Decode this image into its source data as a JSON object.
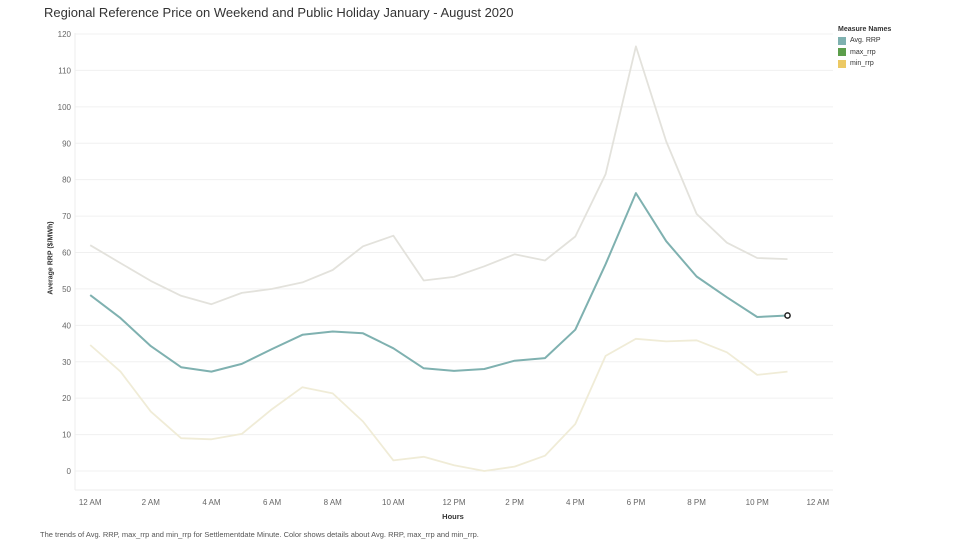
{
  "chart_data": {
    "type": "line",
    "title": "Regional Reference Price on Weekend and Public Holiday January - August 2020",
    "xlabel": "Hours",
    "ylabel": "Average RRP ($/MWh)",
    "caption": "The trends of Avg. RRP, max_rrp and min_rrp for Settlementdate Minute.  Color shows details about Avg. RRP, max_rrp and min_rrp.",
    "ylim": [
      0,
      120
    ],
    "yticks": [
      0,
      10,
      20,
      30,
      40,
      50,
      60,
      70,
      80,
      90,
      100,
      110,
      120
    ],
    "xlim": [
      -0.5,
      24.5
    ],
    "xticks": [
      {
        "value": 0,
        "label": "12 AM"
      },
      {
        "value": 2,
        "label": "2 AM"
      },
      {
        "value": 4,
        "label": "4 AM"
      },
      {
        "value": 6,
        "label": "6 AM"
      },
      {
        "value": 8,
        "label": "8 AM"
      },
      {
        "value": 10,
        "label": "10 AM"
      },
      {
        "value": 12,
        "label": "12 PM"
      },
      {
        "value": 14,
        "label": "2 PM"
      },
      {
        "value": 16,
        "label": "4 PM"
      },
      {
        "value": 18,
        "label": "6 PM"
      },
      {
        "value": 20,
        "label": "8 PM"
      },
      {
        "value": 22,
        "label": "10 PM"
      },
      {
        "value": 24,
        "label": "12 AM"
      }
    ],
    "x": [
      0,
      1,
      2,
      3,
      4,
      5,
      6,
      7,
      8,
      9,
      10,
      11,
      12,
      13,
      14,
      15,
      16,
      17,
      18,
      19,
      20,
      21,
      22,
      23
    ],
    "grid": "horizontal",
    "legend_title": "Measure Names",
    "legend_position": "top-right",
    "series": [
      {
        "name": "Avg. RRP",
        "legend_color": "#7fb1b0",
        "line_color": "#7fb1b0",
        "values": [
          48.3,
          42.0,
          34.3,
          28.5,
          27.3,
          29.4,
          33.5,
          37.4,
          38.3,
          37.8,
          33.7,
          28.2,
          27.5,
          28.0,
          30.3,
          31.0,
          38.8,
          56.8,
          76.3,
          63.1,
          53.4,
          47.7,
          42.3,
          42.7
        ]
      },
      {
        "name": "max_rrp",
        "legend_color": "#5c9e4b",
        "line_color": "#e3e2dc",
        "values": [
          62.0,
          57.1,
          52.2,
          48.1,
          45.8,
          48.9,
          50.0,
          51.8,
          55.2,
          61.7,
          64.6,
          52.3,
          53.3,
          56.2,
          59.5,
          57.8,
          64.4,
          81.5,
          116.6,
          90.5,
          70.6,
          62.7,
          58.5,
          58.2
        ]
      },
      {
        "name": "min_rrp",
        "legend_color": "#ecc964",
        "line_color": "#f0ecd7",
        "values": [
          34.6,
          27.3,
          16.3,
          9.0,
          8.7,
          10.2,
          17.0,
          23.0,
          21.3,
          13.6,
          2.9,
          3.9,
          1.6,
          0.0,
          1.2,
          4.2,
          12.9,
          31.6,
          36.3,
          35.6,
          35.9,
          32.6,
          26.4,
          27.3
        ]
      }
    ],
    "highlighted_point": {
      "series": "Avg. RRP",
      "x": 23,
      "y": 42.7
    }
  }
}
